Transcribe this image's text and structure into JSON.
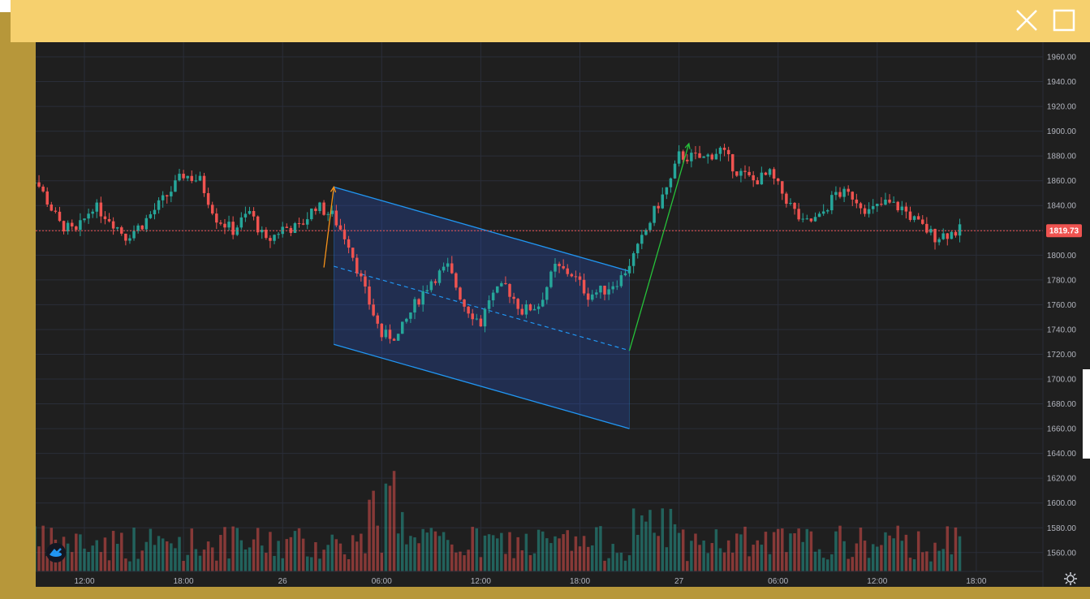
{
  "window": {
    "close_icon": "close-icon",
    "maximize_icon": "maximize-icon"
  },
  "colors": {
    "up": "#26a69a",
    "down": "#ef5350",
    "channel": "#2962ff",
    "price_line": "#ef5350",
    "arrow_orange": "#f7931a",
    "arrow_green": "#26c23a"
  },
  "chart_data": {
    "type": "candlestick",
    "title": "",
    "y_axis": {
      "min": 1550,
      "max": 1970,
      "ticks": [
        1960,
        1940,
        1920,
        1900,
        1880,
        1860,
        1840,
        1820,
        1800,
        1780,
        1760,
        1740,
        1720,
        1700,
        1680,
        1660,
        1640,
        1620,
        1600,
        1580,
        1560
      ],
      "tick_labels": [
        "1960.00",
        "1940.00",
        "1920.00",
        "1900.00",
        "1880.00",
        "1860.00",
        "1840.00",
        "1820.00",
        "1800.00",
        "1780.00",
        "1760.00",
        "1740.00",
        "1720.00",
        "1700.00",
        "1680.00",
        "1660.00",
        "1640.00",
        "1620.00",
        "1600.00",
        "1580.00",
        "1560.00"
      ]
    },
    "x_axis": {
      "tick_labels": [
        "12:00",
        "18:00",
        "26",
        "06:00",
        "12:00",
        "18:00",
        "27",
        "06:00",
        "12:00",
        "18:00"
      ],
      "tick_hours": [
        12,
        18,
        24,
        30,
        36,
        42,
        48,
        54,
        60,
        66
      ]
    },
    "last_price": {
      "value": 1819.73,
      "label": "1819.73"
    },
    "price_path": [
      [
        8,
        1855
      ],
      [
        9,
        1862
      ],
      [
        10.5,
        1825
      ],
      [
        11.5,
        1818
      ],
      [
        12.5,
        1840
      ],
      [
        13.5,
        1830
      ],
      [
        14.5,
        1815
      ],
      [
        15.5,
        1825
      ],
      [
        17,
        1848
      ],
      [
        18,
        1865
      ],
      [
        19,
        1860
      ],
      [
        20,
        1830
      ],
      [
        21,
        1820
      ],
      [
        22,
        1835
      ],
      [
        23,
        1810
      ],
      [
        24,
        1822
      ],
      [
        25,
        1822
      ],
      [
        26,
        1840
      ],
      [
        27,
        1832
      ],
      [
        28,
        1810
      ],
      [
        29,
        1770
      ],
      [
        30,
        1735
      ],
      [
        31,
        1735
      ],
      [
        32,
        1760
      ],
      [
        33,
        1780
      ],
      [
        34,
        1790
      ],
      [
        35,
        1760
      ],
      [
        36,
        1745
      ],
      [
        36.5,
        1765
      ],
      [
        37.5,
        1775
      ],
      [
        38.5,
        1755
      ],
      [
        39.5,
        1760
      ],
      [
        40.5,
        1790
      ],
      [
        41.5,
        1785
      ],
      [
        42.5,
        1768
      ],
      [
        43.5,
        1772
      ],
      [
        44.5,
        1782
      ],
      [
        45.5,
        1805
      ],
      [
        46.5,
        1835
      ],
      [
        47.5,
        1860
      ],
      [
        48,
        1880
      ],
      [
        49.5,
        1878
      ],
      [
        50.5,
        1885
      ],
      [
        51.5,
        1868
      ],
      [
        52.5,
        1860
      ],
      [
        53.5,
        1865
      ],
      [
        54.5,
        1845
      ],
      [
        55.5,
        1825
      ],
      [
        56.5,
        1830
      ],
      [
        57.5,
        1850
      ],
      [
        58.5,
        1848
      ],
      [
        59.5,
        1835
      ],
      [
        60.5,
        1842
      ],
      [
        61.5,
        1838
      ],
      [
        62.5,
        1825
      ],
      [
        63.5,
        1815
      ],
      [
        64.5,
        1818
      ],
      [
        65,
        1820
      ]
    ],
    "channel": {
      "upper": [
        [
          27.1,
          1855
        ],
        [
          45,
          1787
        ]
      ],
      "lower": [
        [
          27.1,
          1728
        ],
        [
          45,
          1660
        ]
      ],
      "mid_dashed": [
        [
          27.1,
          1791
        ],
        [
          45,
          1723
        ]
      ]
    },
    "annotations": [
      {
        "type": "arrow",
        "color": "orange",
        "from": [
          26.5,
          1790
        ],
        "to": [
          27.1,
          1855
        ]
      },
      {
        "type": "arrow",
        "color": "green",
        "from": [
          45,
          1723
        ],
        "to": [
          48.6,
          1890
        ]
      }
    ],
    "volume": {
      "visible": true
    }
  }
}
